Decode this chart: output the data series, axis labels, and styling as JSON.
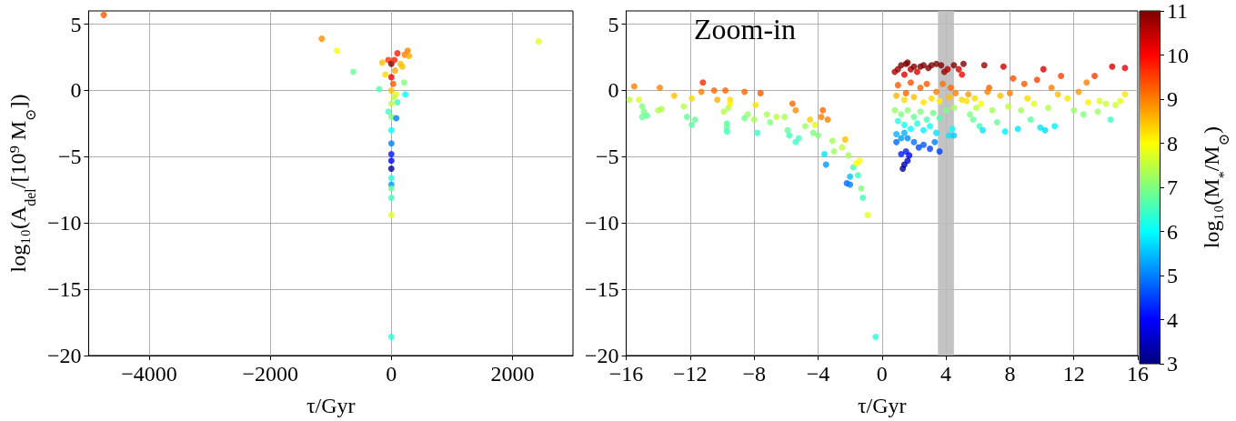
{
  "chart_data": [
    {
      "type": "scatter",
      "xlabel": "τ/Gyr",
      "ylabel": "log₁₀(A$_{del}$/[10⁹ M$_{⊙}$])",
      "xlim": [
        -5000,
        3000
      ],
      "xticks": [
        -4000,
        -2000,
        0,
        2000
      ],
      "ylim": [
        -20,
        6
      ],
      "yticks": [
        -20,
        -15,
        -10,
        -5,
        0,
        5
      ],
      "grid": true,
      "marker": "circle",
      "x": [
        -4750,
        -1150,
        -900,
        -630,
        -200,
        -150,
        -100,
        -50,
        0,
        0,
        0,
        0,
        0,
        0,
        0,
        0,
        0,
        0,
        0,
        0,
        0,
        0,
        0,
        0,
        30,
        50,
        60,
        80,
        100,
        80,
        100,
        150,
        180,
        210,
        230,
        220,
        270,
        290,
        2430,
        -50,
        40
      ],
      "values": [
        5.7,
        3.9,
        3.0,
        1.4,
        0.1,
        2.1,
        1.2,
        2.3,
        2.0,
        1.0,
        0,
        -1,
        -2,
        -3,
        -4,
        -4.8,
        -5.3,
        -5.9,
        -6.6,
        -7.1,
        -7.4,
        -8.1,
        -9.4,
        -18.6,
        0.5,
        2.3,
        1.5,
        -0.3,
        -0.9,
        -2.1,
        2.8,
        2.0,
        1.8,
        0.6,
        -0.3,
        2.7,
        3.0,
        2.6,
        3.7,
        -1.6,
        -0.5
      ],
      "colors": [
        "#ff5900",
        "#ff8c00",
        "#ffff00",
        "#66ff99",
        "#4cffb2",
        "#ffbf00",
        "#ffd900",
        "#ff3300",
        "#7f0000",
        "#ff0000",
        "#ffbf00",
        "#bfff3f",
        "#7fff7f",
        "#00ffff",
        "#007fff",
        "#0019ff",
        "#0000ff",
        "#000098",
        "#26ffd9",
        "#0099ff",
        "#66ff99",
        "#3fffbf",
        "#e5ff19",
        "#26ffd9",
        "#ff5900",
        "#ff1900",
        "#ffa600",
        "#e5ff19",
        "#3fffbf",
        "#007fff",
        "#ff1900",
        "#ffbf00",
        "#ffbf00",
        "#7fff7f",
        "#00ffff",
        "#ff7f00",
        "#ff7f00",
        "#ffa600",
        "#e5ff19",
        "#3fffbf",
        "#bfff3f"
      ]
    },
    {
      "type": "scatter",
      "xlabel": "τ/Gyr",
      "clabel": "log₁₀(M$_{*}$/M$_{⊙}$)",
      "annotations": [
        "Zoom-in"
      ],
      "xlim": [
        -16,
        16
      ],
      "xticks": [
        -16,
        -12,
        -8,
        -4,
        0,
        4,
        8,
        12,
        16
      ],
      "ylim": [
        -20,
        6
      ],
      "yticks": [
        -20,
        -15,
        -10,
        -5,
        0,
        5
      ],
      "clim": [
        3,
        11
      ],
      "cticks": [
        3,
        4,
        5,
        6,
        7,
        8,
        9,
        10,
        11
      ],
      "grid": true,
      "marker": "circle",
      "bands": [
        {
          "axis": "x",
          "from": 3.5,
          "to": 4.5,
          "color": "#bdbdbd"
        }
      ],
      "x": [
        -15.8,
        -15.5,
        -15.2,
        -15,
        -14.9,
        -15,
        -14.7,
        -13.9,
        -14,
        -13.8,
        -13,
        -12.4,
        -12.2,
        -11.9,
        -11.9,
        -11.7,
        -11.3,
        -11.2,
        -10.5,
        -10.3,
        -9.9,
        -9.8,
        -9.7,
        -9.7,
        -9.7,
        -9.6,
        -9.5,
        -9.5,
        -8.6,
        -8.6,
        -8.4,
        -8,
        -7.8,
        -7.9,
        -7.6,
        -7.2,
        -7,
        -6.6,
        -6.1,
        -5.9,
        -5.8,
        -5.6,
        -5.4,
        -5.2,
        -5.4,
        -4.8,
        -4.5,
        -4.3,
        -4.2,
        -4,
        -3.8,
        -3.7,
        -3.4,
        -3.6,
        -3.5,
        -3.1,
        -3,
        -2.5,
        -2.3,
        -2.2,
        -2,
        -2.1,
        -2,
        -1.8,
        -1.6,
        -1.5,
        -1.4,
        -1.3,
        -1.2,
        -0.9,
        -0.4,
        0.8,
        1,
        1.2,
        1.5,
        1.6,
        1.8,
        2,
        2.2,
        2.4,
        2.6,
        2.9,
        3.1,
        3.4,
        3.7,
        3.9,
        4.1,
        4.5,
        4.8,
        5.1,
        1.4,
        1,
        1.5,
        1.8,
        2.4,
        2.8,
        3.4,
        3.8,
        4.3,
        4.6,
        5,
        5.4,
        6.4,
        6.7,
        0.9,
        1.4,
        2,
        2.6,
        3.1,
        3.6,
        4.2,
        5,
        5.8,
        6.2,
        0.8,
        1.2,
        1.6,
        2,
        2.4,
        2.8,
        3.2,
        3.6,
        4,
        4.5,
        1,
        1.4,
        1.8,
        2.2,
        2.6,
        3,
        3.4,
        4.2,
        4.4,
        4.5,
        0.9,
        1.2,
        1.4,
        1.6,
        2,
        2.3,
        2.6,
        3,
        3.3,
        3.6,
        0.9,
        1.2,
        1.5,
        1.7,
        1.6,
        1.4,
        1.3,
        5.3,
        5.5,
        5.7,
        5.9,
        6.1,
        6.3,
        6.6,
        6.9,
        7.2,
        7.4,
        7.6,
        7.7,
        7.9,
        8,
        8.2,
        8.5,
        8.7,
        8.9,
        9.1,
        9.3,
        9.5,
        9.7,
        9.9,
        10.1,
        10.2,
        10.4,
        10.6,
        10.8,
        11,
        11.2,
        11.6,
        12,
        12.3,
        12.6,
        12.8,
        12.9,
        13.3,
        13.5,
        13.6,
        14,
        14.3,
        14.4,
        14.6,
        14.9,
        15.2,
        15.2
      ],
      "values": [
        -0.7,
        0.3,
        -0.7,
        -1.2,
        -1.6,
        -2,
        -1.9,
        0.2,
        -1.5,
        -1.4,
        -0.4,
        -1.2,
        -2,
        -0.6,
        -2.6,
        -2.2,
        -0.1,
        0.6,
        0,
        -0.7,
        -1.6,
        0,
        -2.5,
        -2.8,
        -3.1,
        -1.3,
        -0.7,
        -1,
        -0.1,
        -2.1,
        -1.8,
        -2.2,
        -3.2,
        -1.1,
        -0.2,
        -1.8,
        -2.4,
        -2,
        -2,
        -3,
        -3.4,
        -1,
        -1.5,
        -3.6,
        -3.9,
        -2.7,
        -2.2,
        -3.2,
        -2.6,
        -3.4,
        -2,
        -1.5,
        -2.2,
        -4.8,
        -5.6,
        -3.8,
        -4.6,
        -4.3,
        -3.7,
        -7,
        -7.1,
        -4.9,
        -6.5,
        -5.8,
        -5.5,
        -6.4,
        -5.3,
        -7.4,
        -8.1,
        -9.4,
        -18.6,
        1.4,
        1.6,
        1.9,
        2,
        2.1,
        1.6,
        1.8,
        1.4,
        1.8,
        1.9,
        1.7,
        1.9,
        2,
        1.9,
        1.4,
        1.6,
        1.9,
        1.6,
        2,
        1.2,
        0.4,
        -0.2,
        0.6,
        0.2,
        0.5,
        -0.1,
        0.5,
        0.2,
        -0.2,
        1.2,
        -0.3,
        1.9,
        0.2,
        -0.4,
        -0.7,
        -0.5,
        -0.9,
        -0.6,
        -0.8,
        -0.5,
        -0.7,
        -0.6,
        -1,
        -1.5,
        -1.8,
        -1.5,
        -2,
        -1.6,
        -2.2,
        -1.7,
        -2.1,
        -1.5,
        -1.3,
        -2.3,
        -2.6,
        -2.9,
        -2.5,
        -3,
        -2.7,
        -3.2,
        -3.4,
        -2.9,
        -3.4,
        -3.3,
        -3.6,
        -3.2,
        -3.6,
        -3.9,
        -4.3,
        -4.1,
        -4.4,
        -3.9,
        -4.6,
        -3.9,
        -4.8,
        -4.6,
        -4.9,
        -5.3,
        -5.6,
        -5.9,
        -0.8,
        -1.8,
        -2.2,
        -1.3,
        -2.7,
        -3,
        -0.1,
        -1.5,
        -2.4,
        -0.4,
        1.8,
        -3.1,
        -1.2,
        -0.2,
        0.9,
        -2.9,
        -1.5,
        0.5,
        -0.6,
        -2.2,
        -1,
        0.8,
        -2.8,
        1.6,
        -3,
        -1.3,
        0.2,
        -2.7,
        -0.3,
        1.1,
        -0.6,
        -1.5,
        -0.1,
        -1.8,
        0.6,
        -0.9,
        1.1,
        -1.6,
        -0.8,
        -1,
        -2.2,
        1.8,
        -1.1,
        -0.8,
        1.7,
        -0.3
      ],
      "cvalues": [
        7.5,
        9,
        7.7,
        7,
        7,
        6.8,
        6.8,
        9,
        7.4,
        7.4,
        8.5,
        7.4,
        6.8,
        8.3,
        6.7,
        6.8,
        9,
        9.7,
        9.2,
        8.6,
        7.4,
        9.2,
        6.7,
        6.8,
        6.5,
        7.4,
        8.3,
        8.1,
        9.2,
        6.9,
        7.2,
        7.3,
        6.4,
        8.2,
        9.3,
        7.3,
        7,
        7.5,
        7.3,
        6.8,
        6.5,
        9.2,
        8.9,
        6.6,
        6.4,
        7.2,
        8.4,
        7,
        7.8,
        7,
        9,
        9.2,
        9,
        5.8,
        5.2,
        7.3,
        7.2,
        7.5,
        8.5,
        4.8,
        5,
        7.3,
        5.5,
        6.5,
        8,
        6.5,
        8,
        7,
        6.5,
        7.8,
        6.3,
        10.6,
        10.8,
        11,
        11,
        11,
        10.6,
        11,
        10.3,
        11,
        11,
        11,
        11,
        11,
        11,
        10.8,
        10.6,
        11,
        10.4,
        11,
        10.2,
        9.3,
        9.2,
        9.4,
        9.2,
        9.3,
        9,
        9.1,
        9.2,
        9,
        10,
        8.8,
        10.8,
        9.2,
        8.6,
        8.3,
        8.5,
        8.2,
        8.3,
        8.1,
        8.5,
        8.3,
        8.3,
        8,
        7.2,
        7,
        7.1,
        6.8,
        7,
        6.6,
        6.9,
        6.6,
        7,
        7.3,
        6.3,
        6.2,
        6,
        6.3,
        5.9,
        6.1,
        5.8,
        5.8,
        6,
        5.6,
        5.4,
        5.2,
        5.4,
        5.1,
        4.9,
        4.6,
        4.7,
        4.5,
        5,
        4.5,
        4.8,
        4.2,
        4.2,
        4,
        3.6,
        3.4,
        3.2,
        8.2,
        7,
        6.8,
        7.5,
        6.5,
        5.8,
        9,
        7.3,
        6.8,
        8.5,
        10.4,
        5.9,
        7.5,
        9,
        9.4,
        5.8,
        7.3,
        9.3,
        8.3,
        6.7,
        7.8,
        9.5,
        5.8,
        10.3,
        5.7,
        7.4,
        9,
        5.9,
        8.5,
        9.5,
        8.2,
        7.2,
        8.8,
        7,
        9,
        8.1,
        9.5,
        7.2,
        7.7,
        7.6,
        6.5,
        10.3,
        7.6,
        7.8,
        10.2,
        8.2
      ]
    }
  ]
}
